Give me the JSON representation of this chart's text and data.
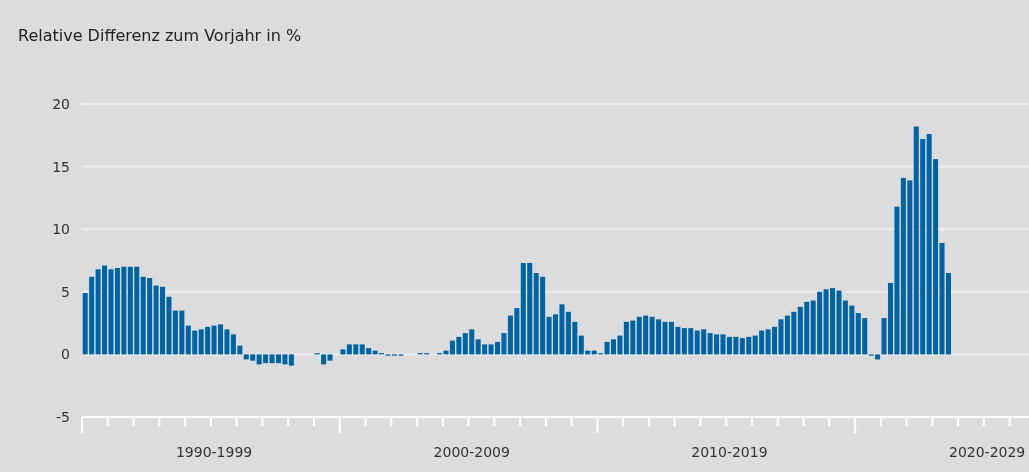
{
  "chart_data": {
    "type": "bar",
    "title": "Relative Differenz zum Vorjahr in %",
    "categories": [
      null,
      null,
      null,
      null,
      null,
      null,
      null,
      null,
      null,
      null,
      null,
      null,
      null,
      null,
      null,
      null,
      null,
      null,
      null,
      null,
      "1990-1999",
      null,
      null,
      null,
      null,
      null,
      null,
      null,
      null,
      null,
      null,
      null,
      null,
      null,
      null,
      null,
      null,
      null,
      null,
      null,
      null,
      null,
      null,
      null,
      null,
      null,
      null,
      null,
      null,
      null,
      null,
      null,
      null,
      null,
      null,
      null,
      null,
      null,
      null,
      null,
      "2000-2009",
      null,
      null,
      null,
      null,
      null,
      null,
      null,
      null,
      null,
      null,
      null,
      null,
      null,
      null,
      null,
      null,
      null,
      null,
      null,
      null,
      null,
      null,
      null,
      null,
      null,
      null,
      null,
      null,
      null,
      null,
      null,
      null,
      null,
      null,
      null,
      null,
      null,
      null,
      null,
      "2010-2019",
      null,
      null,
      null,
      null,
      null,
      null,
      null,
      null,
      null,
      null,
      null,
      null,
      null,
      null,
      null,
      null,
      null,
      null,
      null,
      null,
      null,
      null,
      null,
      null,
      null,
      null,
      null,
      null,
      null,
      null,
      null,
      null,
      null,
      null,
      null,
      null,
      null,
      null,
      null,
      "2020-2029",
      null,
      null,
      null,
      null,
      null,
      null
    ],
    "values": [
      4.9,
      6.2,
      6.8,
      7.1,
      6.8,
      6.9,
      7.0,
      7.0,
      7.0,
      6.2,
      6.1,
      5.5,
      5.4,
      4.6,
      3.5,
      3.5,
      2.3,
      1.9,
      2.0,
      2.2,
      2.3,
      2.4,
      2.0,
      1.6,
      0.7,
      -0.4,
      -0.5,
      -0.8,
      -0.7,
      -0.7,
      -0.7,
      -0.8,
      -0.9,
      0,
      0,
      0,
      0.1,
      -0.8,
      -0.5,
      0,
      0.4,
      0.8,
      0.8,
      0.8,
      0.5,
      0.3,
      0.1,
      -0.1,
      -0.1,
      -0.1,
      0,
      0,
      0.1,
      0.1,
      0,
      0.1,
      0.3,
      1.1,
      1.4,
      1.7,
      2.0,
      1.2,
      0.8,
      0.8,
      1.0,
      1.7,
      3.1,
      3.7,
      7.3,
      7.3,
      6.5,
      6.2,
      3.0,
      3.2,
      4.0,
      3.4,
      2.6,
      1.5,
      0.3,
      0.3,
      0.1,
      1.0,
      1.2,
      1.5,
      2.6,
      2.7,
      3.0,
      3.1,
      3.0,
      2.8,
      2.6,
      2.6,
      2.2,
      2.1,
      2.1,
      1.9,
      2.0,
      1.7,
      1.6,
      1.6,
      1.4,
      1.4,
      1.3,
      1.4,
      1.5,
      1.9,
      2.0,
      2.2,
      2.8,
      3.1,
      3.4,
      3.8,
      4.2,
      4.3,
      5.0,
      5.2,
      5.3,
      5.1,
      4.3,
      3.9,
      3.3,
      2.9,
      -0.1,
      -0.4,
      2.9,
      5.7,
      11.8,
      14.1,
      13.9,
      18.2,
      17.2,
      17.6,
      15.6,
      8.9,
      6.5,
      null,
      null,
      null,
      null,
      null,
      null,
      null,
      null,
      null,
      null,
      null,
      null
    ],
    "color": "#0063a6",
    "ylim": [
      -5,
      20
    ],
    "yticks": [
      -5,
      0,
      5,
      10,
      15,
      20
    ],
    "grid": "y"
  }
}
